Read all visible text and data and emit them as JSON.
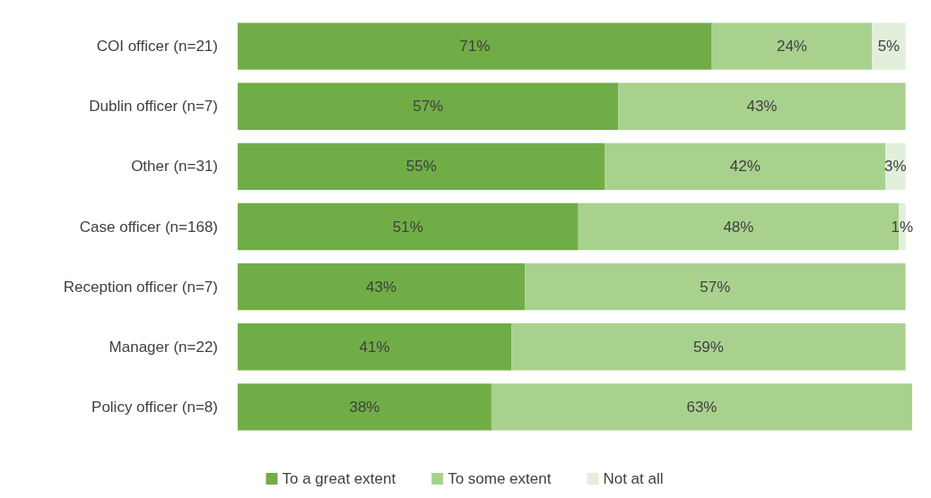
{
  "chart_data": {
    "type": "bar",
    "orientation": "horizontal",
    "stacked": true,
    "legend": "bottom",
    "categories": [
      "COI officer (n=21)",
      "Dublin officer (n=7)",
      "Other (n=31)",
      "Case officer (n=168)",
      "Reception officer (n=7)",
      "Manager (n=22)",
      "Policy officer (n=8)"
    ],
    "series": [
      {
        "name": "To a great extent",
        "color": "#70ad47",
        "values": [
          71,
          57,
          55,
          51,
          43,
          41,
          38
        ],
        "value_labels": [
          "71%",
          "57%",
          "55%",
          "51%",
          "43%",
          "41%",
          "38%"
        ]
      },
      {
        "name": "To some extent",
        "color": "#a9d18e",
        "values": [
          24,
          43,
          42,
          48,
          57,
          59,
          63
        ],
        "value_labels": [
          "24%",
          "43%",
          "42%",
          "48%",
          "57%",
          "59%",
          "63%"
        ]
      },
      {
        "name": "Not at all",
        "color": "#e2efda",
        "values": [
          5,
          0,
          3,
          1,
          0,
          0,
          0
        ],
        "value_labels": [
          "5%",
          null,
          "3%",
          "1%",
          null,
          null,
          null
        ]
      }
    ]
  }
}
